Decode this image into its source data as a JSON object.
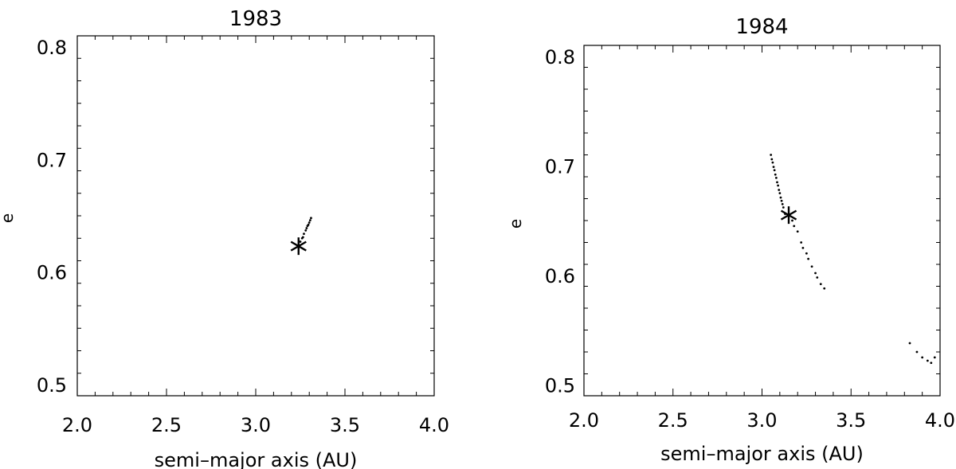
{
  "chart_data": [
    {
      "type": "scatter",
      "title": "1983",
      "xlabel": "semi–major axis (AU)",
      "ylabel": "e",
      "xlim": [
        2.0,
        4.0
      ],
      "ylim": [
        0.49,
        0.81
      ],
      "x_ticks": [
        "2.0",
        "2.5",
        "3.0",
        "3.5",
        "4.0"
      ],
      "y_ticks": [
        "0.5",
        "0.6",
        "0.7",
        "0.8"
      ],
      "grid": false,
      "marker": {
        "a": 3.24,
        "e": 0.623,
        "symbol": "asterisk"
      },
      "points": [
        [
          3.25,
          0.627
        ],
        [
          3.26,
          0.63
        ],
        [
          3.27,
          0.634
        ],
        [
          3.28,
          0.637
        ],
        [
          3.29,
          0.641
        ],
        [
          3.3,
          0.644
        ],
        [
          3.31,
          0.648
        ],
        [
          3.265,
          0.631
        ],
        [
          3.285,
          0.639
        ],
        [
          3.295,
          0.642
        ],
        [
          3.305,
          0.646
        ]
      ]
    },
    {
      "type": "scatter",
      "title": "1984",
      "xlabel": "semi–major axis (AU)",
      "ylabel": "e",
      "xlim": [
        2.0,
        4.0
      ],
      "ylim": [
        0.49,
        0.81
      ],
      "x_ticks": [
        "2.0",
        "2.5",
        "3.0",
        "3.5",
        "4.0"
      ],
      "y_ticks": [
        "0.5",
        "0.6",
        "0.7",
        "0.8"
      ],
      "grid": false,
      "marker": {
        "a": 3.15,
        "e": 0.655,
        "symbol": "asterisk"
      },
      "points": [
        [
          3.05,
          0.71
        ],
        [
          3.06,
          0.703
        ],
        [
          3.07,
          0.696
        ],
        [
          3.08,
          0.689
        ],
        [
          3.09,
          0.682
        ],
        [
          3.1,
          0.675
        ],
        [
          3.11,
          0.668
        ],
        [
          3.12,
          0.662
        ],
        [
          3.13,
          0.656
        ],
        [
          3.055,
          0.706
        ],
        [
          3.065,
          0.699
        ],
        [
          3.075,
          0.692
        ],
        [
          3.085,
          0.685
        ],
        [
          3.095,
          0.678
        ],
        [
          3.105,
          0.671
        ],
        [
          3.115,
          0.665
        ],
        [
          3.17,
          0.65
        ],
        [
          3.18,
          0.645
        ],
        [
          3.2,
          0.64
        ],
        [
          3.22,
          0.63
        ],
        [
          3.23,
          0.625
        ],
        [
          3.25,
          0.62
        ],
        [
          3.26,
          0.615
        ],
        [
          3.28,
          0.608
        ],
        [
          3.3,
          0.602
        ],
        [
          3.31,
          0.598
        ],
        [
          3.33,
          0.592
        ],
        [
          3.35,
          0.588
        ],
        [
          3.83,
          0.538
        ],
        [
          3.87,
          0.53
        ],
        [
          3.9,
          0.525
        ],
        [
          3.93,
          0.522
        ],
        [
          3.95,
          0.52
        ],
        [
          3.97,
          0.525
        ]
      ]
    }
  ]
}
